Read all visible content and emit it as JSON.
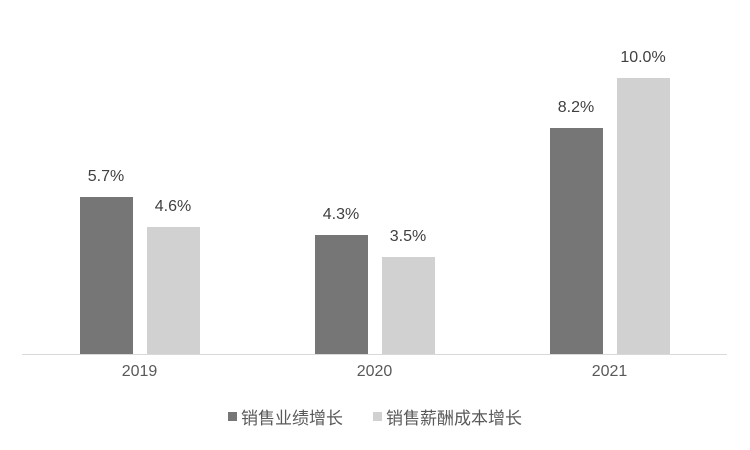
{
  "chart_data": {
    "type": "bar",
    "title": "",
    "xlabel": "",
    "ylabel": "",
    "categories": [
      "2019",
      "2020",
      "2021"
    ],
    "series": [
      {
        "name": "销售业绩增长",
        "color": "#767676",
        "values": [
          5.7,
          4.3,
          8.2
        ],
        "labels": [
          "5.7%",
          "4.3%",
          "8.2%"
        ]
      },
      {
        "name": "销售薪酬成本增长",
        "color": "#d1d1d1",
        "values": [
          4.6,
          3.5,
          10.0
        ],
        "labels": [
          "4.6%",
          "3.5%",
          "10.0%"
        ]
      }
    ],
    "ylim": [
      0,
      12
    ],
    "grid": false,
    "legend_position": "bottom",
    "axis_line_color": "#d9d9d9",
    "value_label_color": "#404040",
    "tick_label_color": "#595959"
  }
}
